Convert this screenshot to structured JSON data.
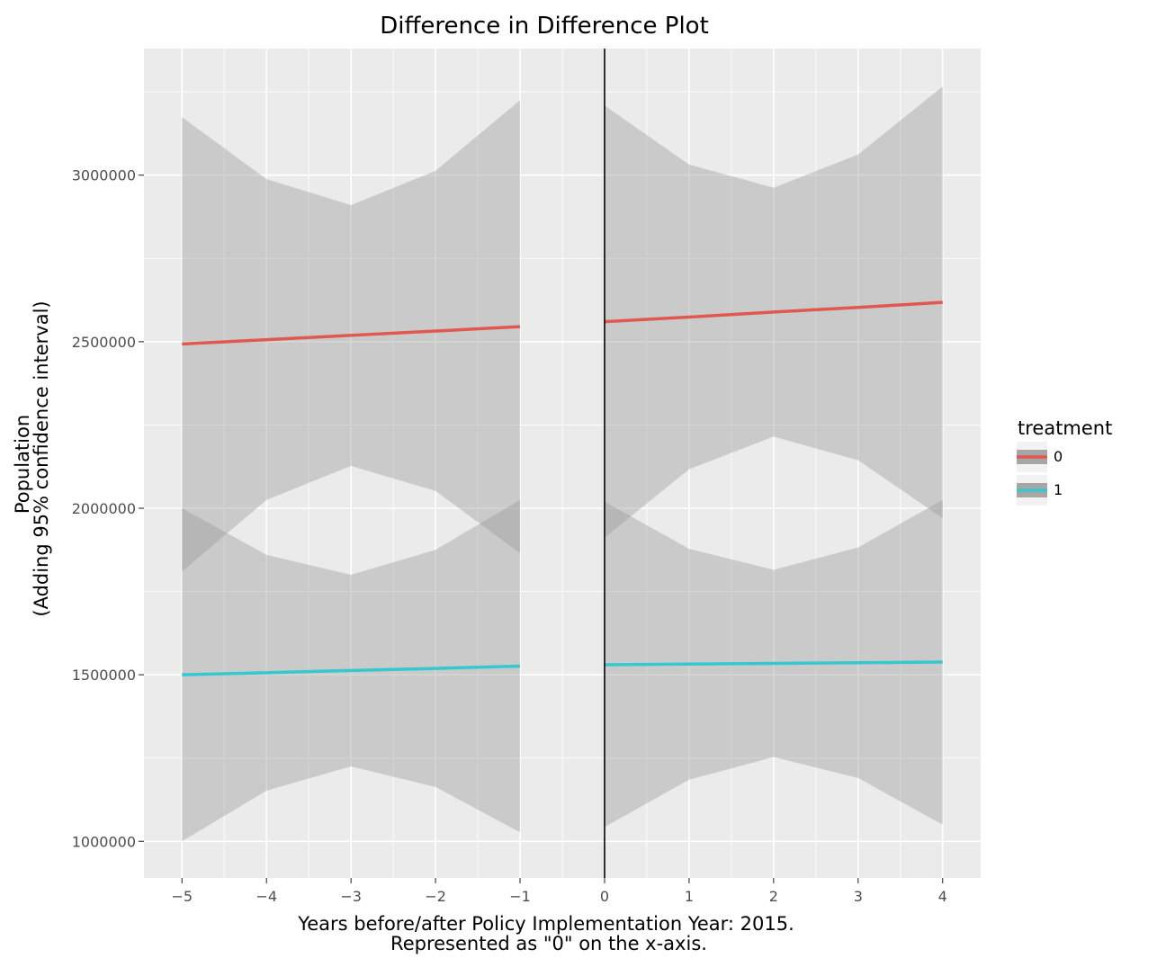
{
  "chart_data": {
    "type": "line",
    "title": "Difference in Difference Plot",
    "xlabel": [
      "Years before/after Policy Implementation Year: 2015.",
      "Represented as \"0\" on the x-axis."
    ],
    "ylabel": [
      "Population",
      "(Adding 95% confidence interval)"
    ],
    "xlim": [
      -5.45,
      4.45
    ],
    "ylim": [
      890000,
      3380000
    ],
    "x_ticks": [
      -5,
      -4,
      -3,
      -2,
      -1,
      0,
      1,
      2,
      3,
      4
    ],
    "x_tick_labels": [
      "−5",
      "−4",
      "−3",
      "−2",
      "−1",
      "0",
      "1",
      "2",
      "3",
      "4"
    ],
    "y_ticks": [
      1000000,
      1500000,
      2000000,
      2500000,
      3000000
    ],
    "y_tick_labels": [
      "1000000",
      "1500000",
      "2000000",
      "2500000",
      "3000000"
    ],
    "grid": true,
    "vline_x": 0,
    "legend": {
      "title": "treatment",
      "position": "right"
    },
    "series": [
      {
        "name": "0",
        "color": "#e0584f",
        "segments": [
          {
            "x": [
              -5,
              -4,
              -3,
              -2,
              -1
            ],
            "y": [
              2493000,
              2506000,
              2519000,
              2532000,
              2545000
            ],
            "ymin": [
              1810000,
              2025000,
              2127000,
              2052000,
              1865000
            ],
            "ymax": [
              3174000,
              2988000,
              2910000,
              3013000,
              3225000
            ]
          },
          {
            "x": [
              0,
              1,
              2,
              3,
              4
            ],
            "y": [
              2560000,
              2574000,
              2589000,
              2603000,
              2618000
            ],
            "ymin": [
              1912000,
              2117000,
              2215000,
              2144000,
              1970000
            ],
            "ymax": [
              3209000,
              3032000,
              2962000,
              3062000,
              3266000
            ]
          }
        ]
      },
      {
        "name": "1",
        "color": "#36c7cf",
        "segments": [
          {
            "x": [
              -5,
              -4,
              -3,
              -2,
              -1
            ],
            "y": [
              1500000,
              1506000,
              1513000,
              1519000,
              1526000
            ],
            "ymin": [
              1000000,
              1152000,
              1225000,
              1163000,
              1027000
            ],
            "ymax": [
              2000000,
              1860000,
              1800000,
              1875000,
              2025000
            ]
          },
          {
            "x": [
              0,
              1,
              2,
              3,
              4
            ],
            "y": [
              1530000,
              1532000,
              1534000,
              1536000,
              1538000
            ],
            "ymin": [
              1043000,
              1185000,
              1253000,
              1190000,
              1050000
            ],
            "ymax": [
              2020000,
              1878000,
              1815000,
              1882000,
              2025000
            ]
          }
        ]
      }
    ]
  }
}
